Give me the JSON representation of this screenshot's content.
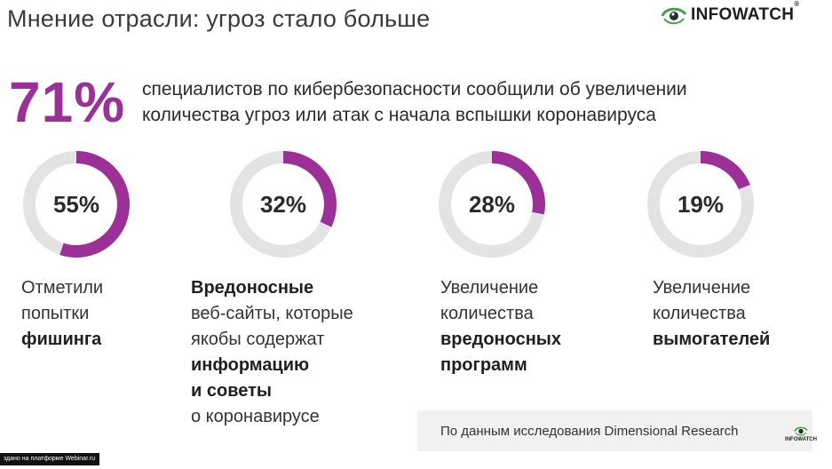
{
  "header": {
    "title": "Мнение отрасли: угроз стало больше",
    "logo_text": "INFOWATCH",
    "logo_mark": "®"
  },
  "hero": {
    "value": "71%",
    "line1": "специалистов по кибербезопасности сообщили об увеличении",
    "line2": "количества угроз или атак с начала вспышки коронавируса"
  },
  "stats": [
    {
      "percent_label": "55%",
      "fraction": 0.55,
      "lines": [
        {
          "text": "Отметили",
          "bold": false
        },
        {
          "text": "попытки",
          "bold": false
        },
        {
          "text": "фишинга",
          "bold": true
        }
      ]
    },
    {
      "percent_label": "32%",
      "fraction": 0.32,
      "lines": [
        {
          "text": "Вредоносные",
          "bold": true
        },
        {
          "text": "веб-сайты, которые",
          "bold": false
        },
        {
          "text": "якобы содержат",
          "bold": false
        },
        {
          "text": "информацию",
          "bold": true
        },
        {
          "text": "и советы",
          "bold": true
        },
        {
          "text": "о коронавирусе",
          "bold": false
        }
      ]
    },
    {
      "percent_label": "28%",
      "fraction": 0.28,
      "lines": [
        {
          "text": "Увеличение",
          "bold": false
        },
        {
          "text": "количества",
          "bold": false
        },
        {
          "text": "вредоносных",
          "bold": true
        },
        {
          "text": "программ",
          "bold": true
        }
      ]
    },
    {
      "percent_label": "19%",
      "fraction": 0.19,
      "lines": [
        {
          "text": "Увеличение",
          "bold": false
        },
        {
          "text": "количества",
          "bold": false
        },
        {
          "text": "вымогателей",
          "bold": true
        }
      ]
    }
  ],
  "source": {
    "text": "По данным исследования Dimensional Research"
  },
  "overlay": {
    "left_bar_text": "здано на платформе Webinar.ru",
    "mini_logo_text": "INFOWATCH"
  },
  "colors": {
    "accent": "#9c2f98",
    "ring_track": "#e3e3e3",
    "logo_green": "#3aa54a"
  },
  "icons": {
    "logo": "infowatch-eye-icon"
  }
}
